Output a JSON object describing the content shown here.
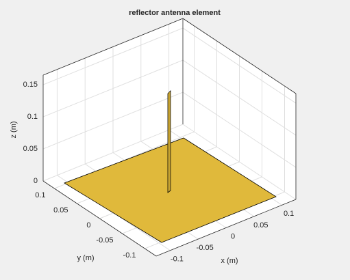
{
  "chart_data": {
    "type": "patch3d",
    "title": "reflector antenna element",
    "xlabel": "x (m)",
    "ylabel": "y (m)",
    "zlabel": "z (m)",
    "xlim": [
      -0.125,
      0.125
    ],
    "ylim": [
      -0.125,
      0.125
    ],
    "zlim": [
      0,
      0.165
    ],
    "xticks": [
      -0.1,
      -0.05,
      0,
      0.05,
      0.1
    ],
    "yticks": [
      -0.1,
      -0.05,
      0,
      0.05,
      0.1
    ],
    "zticks": [
      0,
      0.05,
      0.1,
      0.15
    ],
    "grid": true
  }
}
